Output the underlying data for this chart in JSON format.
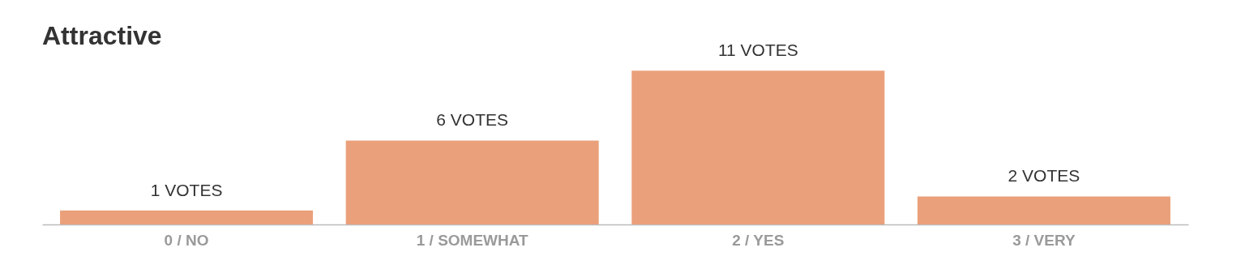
{
  "chart_data": {
    "type": "bar",
    "title": "Attractive",
    "categories": [
      "0 / NO",
      "1 / SOMEWHAT",
      "2 / YES",
      "3 / VERY"
    ],
    "values": [
      1,
      6,
      11,
      2
    ],
    "color": "#eaa07a",
    "value_labels": [
      "1 VOTES",
      "6 VOTES",
      "11 VOTES",
      "2 VOTES"
    ],
    "grid": false
  }
}
